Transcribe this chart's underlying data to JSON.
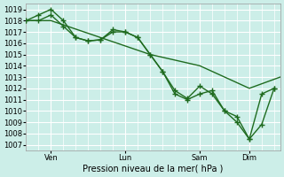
{
  "xlabel": "Pression niveau de la mer( hPa )",
  "bg_color": "#cceee8",
  "grid_color": "#ffffff",
  "line_color": "#1f6b1f",
  "ylim": [
    1006.5,
    1019.5
  ],
  "yticks": [
    1007,
    1008,
    1009,
    1010,
    1011,
    1012,
    1013,
    1014,
    1015,
    1016,
    1017,
    1018,
    1019
  ],
  "xtick_positions": [
    8,
    32,
    56,
    72
  ],
  "xtick_labels": [
    "Ven",
    "Lun",
    "Sam",
    "Dim"
  ],
  "xlim": [
    0,
    82
  ],
  "series1_x": [
    0,
    8,
    24,
    40,
    56,
    72,
    82
  ],
  "series1_y": [
    1018.0,
    1018.0,
    1016.5,
    1015.0,
    1014.0,
    1012.0,
    1013.0
  ],
  "series2_x": [
    0,
    4,
    8,
    12,
    16,
    20,
    24,
    28,
    32,
    36,
    40,
    44,
    48,
    52,
    56,
    60,
    64,
    68,
    72,
    76,
    80
  ],
  "series2_y": [
    1018.0,
    1018.5,
    1019.0,
    1018.0,
    1016.5,
    1016.2,
    1016.3,
    1017.2,
    1017.0,
    1016.5,
    1015.0,
    1013.5,
    1011.8,
    1011.1,
    1012.2,
    1011.5,
    1010.0,
    1009.0,
    1007.5,
    1011.5,
    1012.0
  ],
  "series3_x": [
    0,
    4,
    8,
    12,
    16,
    20,
    24,
    28,
    32,
    36,
    40,
    44,
    48,
    52,
    56,
    60,
    64,
    68,
    72,
    76,
    80
  ],
  "series3_y": [
    1018.0,
    1018.0,
    1018.5,
    1017.5,
    1016.5,
    1016.2,
    1016.3,
    1017.0,
    1017.0,
    1016.5,
    1015.0,
    1013.5,
    1011.5,
    1011.0,
    1011.5,
    1011.8,
    1010.0,
    1009.5,
    1007.5,
    1008.8,
    1012.0
  ]
}
